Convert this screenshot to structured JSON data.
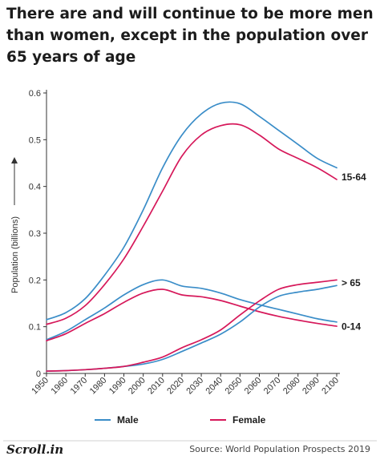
{
  "header": {
    "title": "There are and will continue to be more men than women, except in the population over 65 years of age"
  },
  "footer": {
    "source": "Source: World Population Prospects 2019",
    "logo": "Scroll.in"
  },
  "colors": {
    "male": "#3a8dc8",
    "female": "#d6185a"
  },
  "chart_data": {
    "type": "line",
    "title": "There are and will continue to be more men than women, except in the population over 65 years of age",
    "ylabel": "Population (billions)",
    "xlabel": "",
    "xlim": [
      1950,
      2100
    ],
    "ylim": [
      0,
      0.6
    ],
    "x_ticks": [
      "1950",
      "1960",
      "1970",
      "1980",
      "1990",
      "2000",
      "2010",
      "2020",
      "2030",
      "2040",
      "2050",
      "2060",
      "2070",
      "2080",
      "2090",
      "2100"
    ],
    "y_ticks": [
      "0",
      "0.1",
      "0.2",
      "0.3",
      "0.4",
      "0.5",
      "0.6"
    ],
    "grid": false,
    "legend": [
      "Male",
      "Female"
    ],
    "legend_position": "bottom",
    "group_labels": [
      "15-64",
      "> 65",
      "0-14"
    ],
    "series": [
      {
        "name": "Male",
        "group": "15-64",
        "x": [
          1950,
          1960,
          1970,
          1980,
          1990,
          2000,
          2010,
          2020,
          2030,
          2040,
          2050,
          2060,
          2070,
          2080,
          2090,
          2100
        ],
        "values": [
          0.115,
          0.13,
          0.16,
          0.21,
          0.27,
          0.35,
          0.44,
          0.51,
          0.555,
          0.578,
          0.577,
          0.55,
          0.52,
          0.49,
          0.46,
          0.44
        ]
      },
      {
        "name": "Female",
        "group": "15-64",
        "x": [
          1950,
          1960,
          1970,
          1980,
          1990,
          2000,
          2010,
          2020,
          2030,
          2040,
          2050,
          2060,
          2070,
          2080,
          2090,
          2100
        ],
        "values": [
          0.105,
          0.118,
          0.145,
          0.19,
          0.245,
          0.315,
          0.39,
          0.465,
          0.51,
          0.53,
          0.532,
          0.51,
          0.48,
          0.46,
          0.44,
          0.415
        ]
      },
      {
        "name": "Male",
        "group": "0-14",
        "x": [
          1950,
          1960,
          1970,
          1980,
          1990,
          2000,
          2010,
          2020,
          2030,
          2040,
          2050,
          2060,
          2070,
          2080,
          2090,
          2100
        ],
        "values": [
          0.072,
          0.09,
          0.115,
          0.14,
          0.168,
          0.19,
          0.2,
          0.187,
          0.182,
          0.172,
          0.158,
          0.147,
          0.137,
          0.127,
          0.117,
          0.11
        ]
      },
      {
        "name": "Female",
        "group": "0-14",
        "x": [
          1950,
          1960,
          1970,
          1980,
          1990,
          2000,
          2010,
          2020,
          2030,
          2040,
          2050,
          2060,
          2070,
          2080,
          2090,
          2100
        ],
        "values": [
          0.07,
          0.085,
          0.107,
          0.128,
          0.152,
          0.172,
          0.18,
          0.168,
          0.164,
          0.156,
          0.144,
          0.132,
          0.122,
          0.114,
          0.107,
          0.101
        ]
      },
      {
        "name": "Male",
        "group": "> 65",
        "x": [
          1950,
          1960,
          1970,
          1980,
          1990,
          2000,
          2010,
          2020,
          2030,
          2040,
          2050,
          2060,
          2070,
          2080,
          2090,
          2100
        ],
        "values": [
          0.005,
          0.006,
          0.008,
          0.011,
          0.015,
          0.02,
          0.03,
          0.047,
          0.065,
          0.084,
          0.11,
          0.142,
          0.165,
          0.174,
          0.18,
          0.188
        ]
      },
      {
        "name": "Female",
        "group": "> 65",
        "x": [
          1950,
          1960,
          1970,
          1980,
          1990,
          2000,
          2010,
          2020,
          2030,
          2040,
          2050,
          2060,
          2070,
          2080,
          2090,
          2100
        ],
        "values": [
          0.005,
          0.006,
          0.008,
          0.011,
          0.015,
          0.024,
          0.035,
          0.055,
          0.072,
          0.093,
          0.125,
          0.155,
          0.18,
          0.19,
          0.195,
          0.2
        ]
      }
    ]
  }
}
